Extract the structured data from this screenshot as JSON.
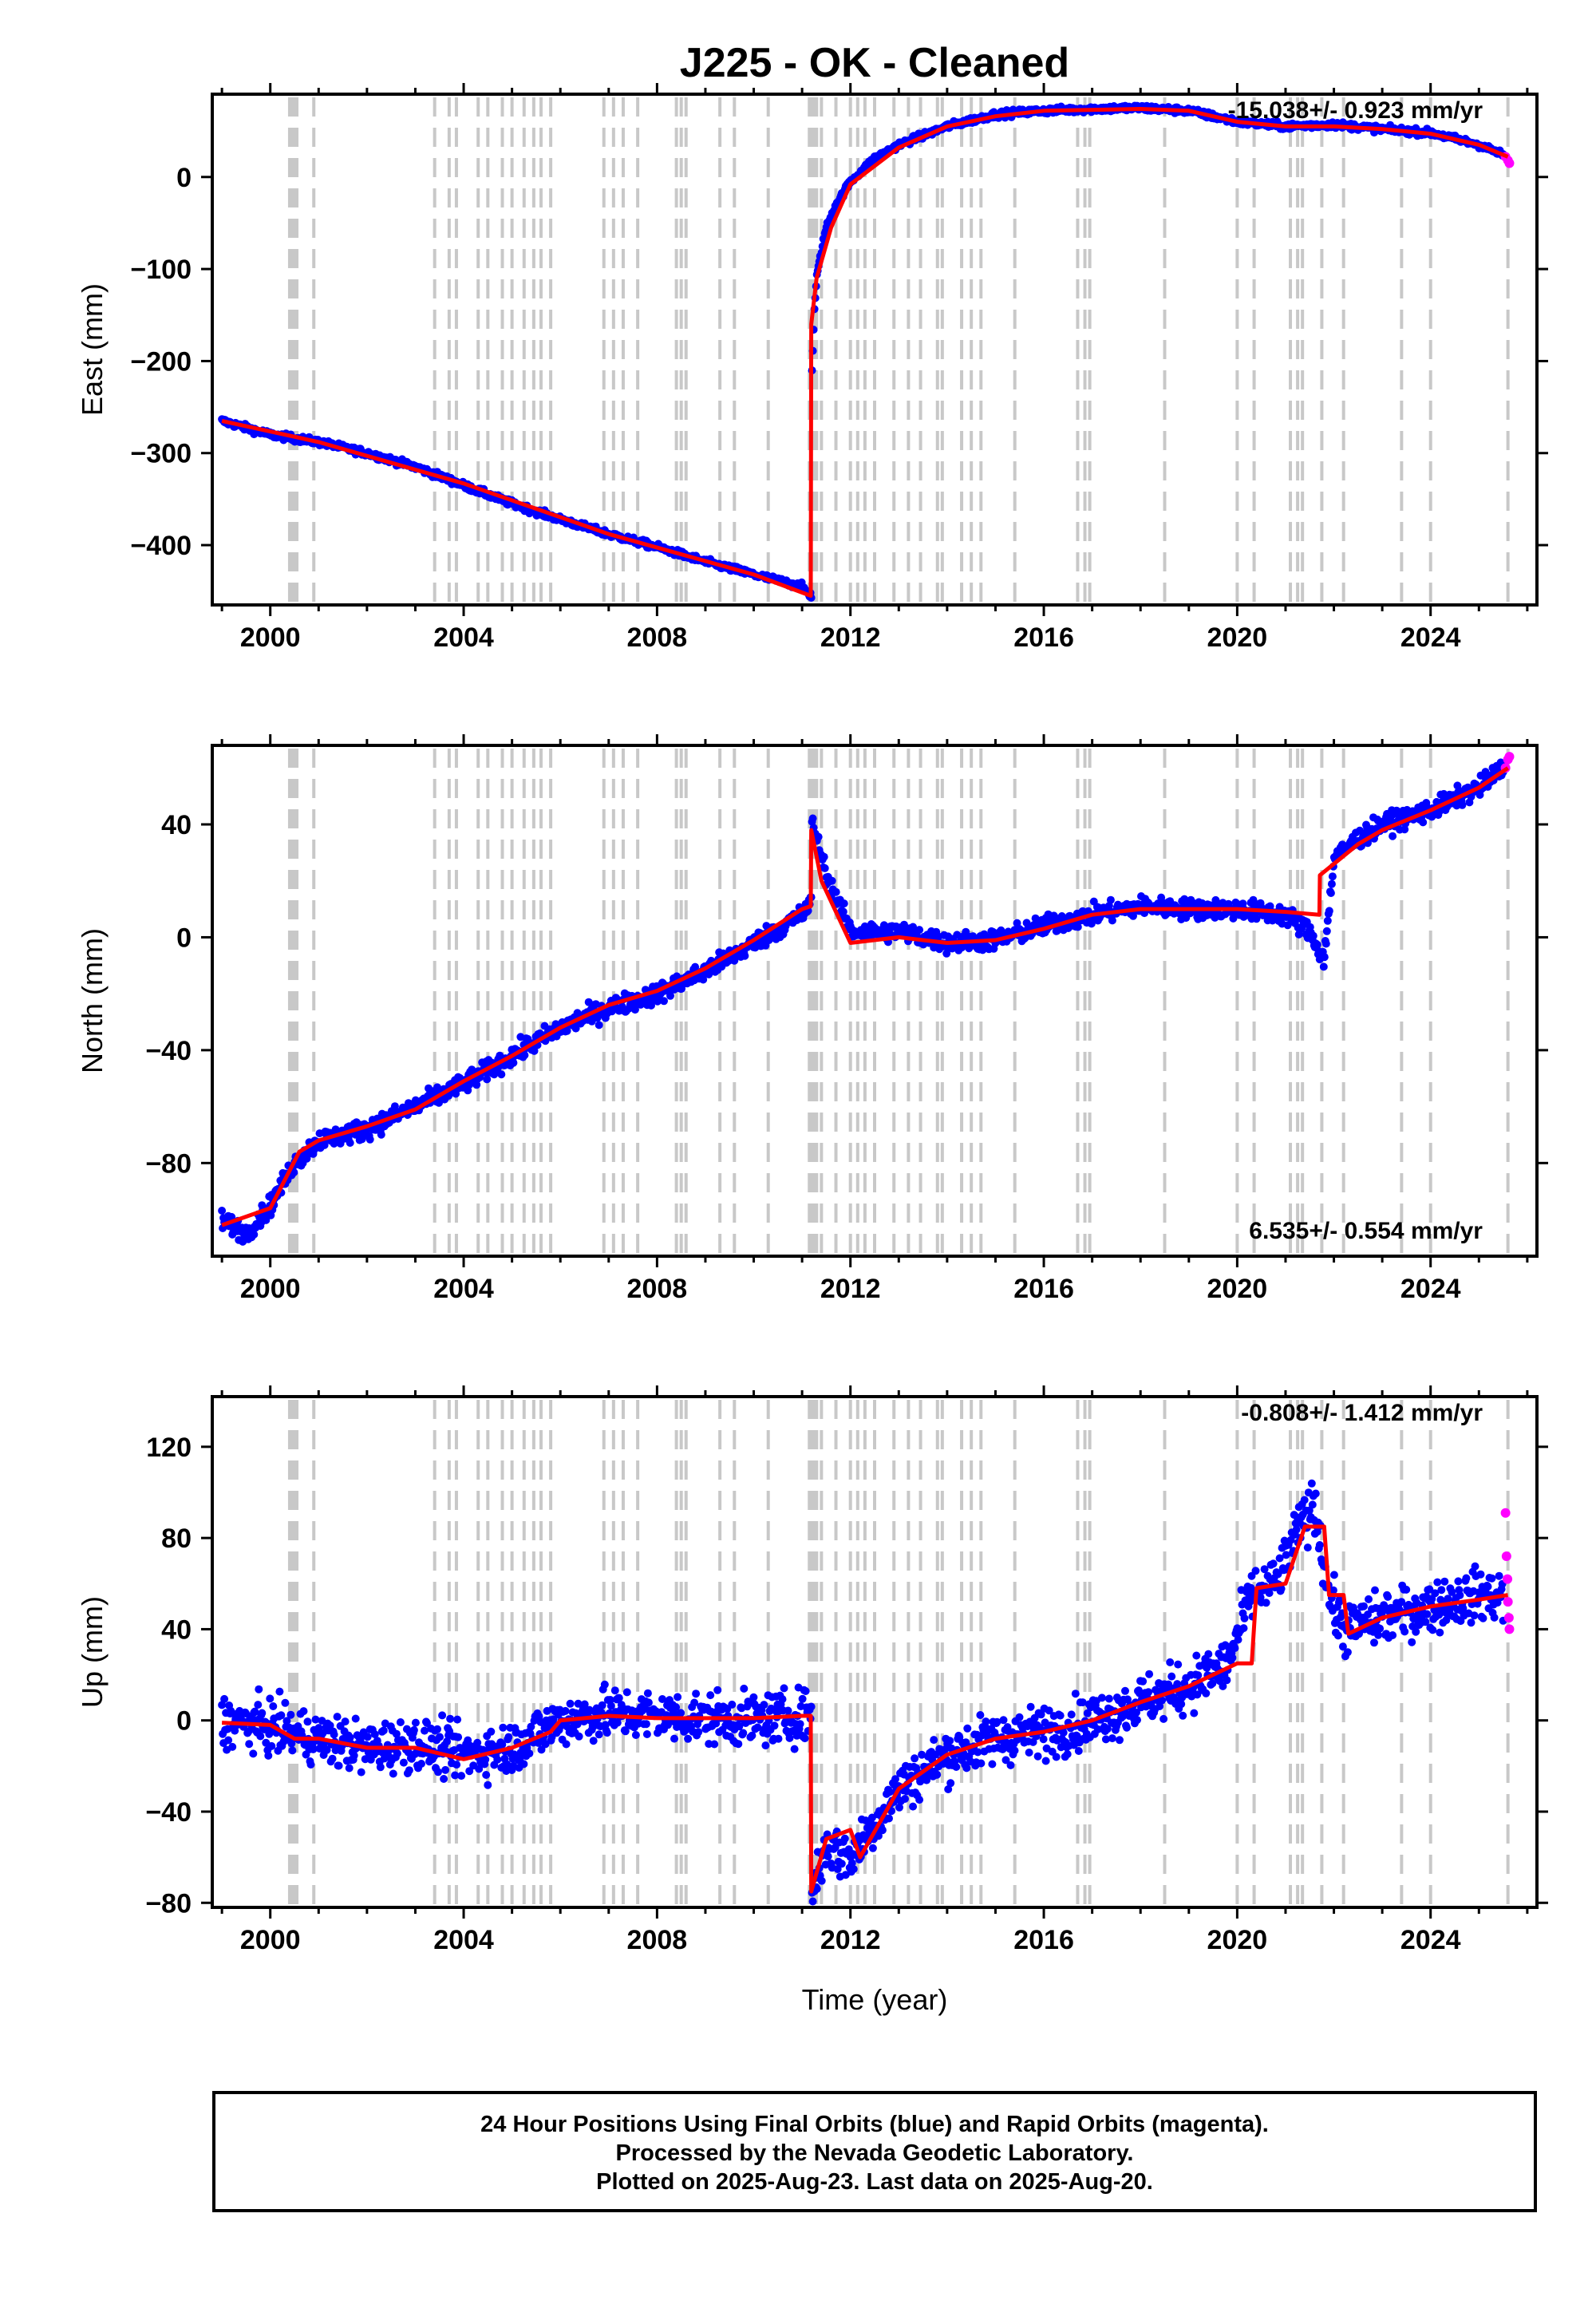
{
  "title": "J225  - OK - Cleaned",
  "xlabel": "Time (year)",
  "footer": {
    "line1": "24 Hour Positions Using Final Orbits (blue) and Rapid Orbits (magenta).",
    "line2": "Processed by the Nevada Geodetic Laboratory.",
    "line3": "Plotted on 2025-Aug-23. Last data on 2025-Aug-20."
  },
  "colors": {
    "final_orbits": "#0000ff",
    "rapid_orbits": "#ff00ff",
    "model": "#ff0000",
    "event_lines": "#c8c8c8"
  },
  "chart_data": [
    {
      "type": "scatter",
      "component": "East",
      "ylabel": "East (mm)",
      "rate": "-15.038+/- 0.923 mm/yr",
      "xlim": [
        1998.8,
        2026.2
      ],
      "ylim": [
        -465,
        90
      ],
      "xticks": [
        2000,
        2004,
        2008,
        2012,
        2016,
        2020,
        2024
      ],
      "yticks": [
        -400,
        -300,
        -200,
        -100,
        0
      ],
      "series": [
        {
          "name": "Final Orbits",
          "color": "#0000ff",
          "x": [
            1999.0,
            2000.0,
            2001.0,
            2002.0,
            2003.0,
            2004.0,
            2005.0,
            2006.0,
            2007.0,
            2008.0,
            2009.0,
            2010.0,
            2011.0,
            2011.19,
            2011.2,
            2011.25,
            2011.3,
            2011.4,
            2011.5,
            2011.7,
            2012.0,
            2012.5,
            2013.0,
            2014.0,
            2015.0,
            2016.0,
            2017.0,
            2018.0,
            2019.0,
            2020.0,
            2021.0,
            2022.0,
            2023.0,
            2024.0,
            2025.0,
            2025.5
          ],
          "y": [
            -265,
            -280,
            -288,
            -300,
            -315,
            -335,
            -355,
            -372,
            -388,
            -402,
            -418,
            -432,
            -445,
            -455,
            -220,
            -150,
            -110,
            -80,
            -55,
            -30,
            -5,
            20,
            35,
            55,
            68,
            72,
            74,
            75,
            72,
            60,
            55,
            57,
            52,
            48,
            35,
            24
          ]
        },
        {
          "name": "Rapid Orbits",
          "color": "#ff00ff",
          "x": [
            2025.55,
            2025.6,
            2025.63
          ],
          "y": [
            22,
            18,
            15
          ]
        },
        {
          "name": "Model",
          "color": "#ff0000",
          "x": [
            1999.0,
            2001.0,
            2004.0,
            2007.0,
            2010.0,
            2011.18,
            2011.19,
            2011.3,
            2011.6,
            2012.0,
            2013.0,
            2014.0,
            2015.0,
            2016.0,
            2018.0,
            2019.0,
            2020.0,
            2021.0,
            2022.0,
            2023.0,
            2024.0,
            2025.0,
            2025.6
          ],
          "y": [
            -265,
            -288,
            -333,
            -388,
            -432,
            -455,
            -160,
            -110,
            -55,
            -8,
            32,
            55,
            66,
            72,
            74,
            72,
            60,
            55,
            55,
            52,
            47,
            35,
            22
          ]
        }
      ]
    },
    {
      "type": "scatter",
      "component": "North",
      "ylabel": "North (mm)",
      "rate": "6.535+/- 0.554 mm/yr",
      "xlim": [
        1998.8,
        2026.2
      ],
      "ylim": [
        -113,
        68
      ],
      "xticks": [
        2000,
        2004,
        2008,
        2012,
        2016,
        2020,
        2024
      ],
      "yticks": [
        -80,
        -40,
        0,
        40
      ],
      "series": [
        {
          "name": "Final Orbits",
          "color": "#0000ff",
          "x": [
            1999.0,
            1999.5,
            2000.0,
            2000.5,
            2001.0,
            2002.0,
            2003.0,
            2004.0,
            2005.0,
            2006.0,
            2007.0,
            2008.0,
            2009.0,
            2010.0,
            2011.0,
            2011.19,
            2011.2,
            2011.5,
            2012.0,
            2013.0,
            2014.0,
            2015.0,
            2016.0,
            2017.0,
            2018.0,
            2019.0,
            2020.0,
            2021.0,
            2021.5,
            2021.8,
            2022.0,
            2022.5,
            2023.0,
            2024.0,
            2025.0,
            2025.5
          ],
          "y": [
            -100,
            -105,
            -95,
            -80,
            -72,
            -68,
            -60,
            -52,
            -42,
            -32,
            -25,
            -20,
            -12,
            -2,
            8,
            12,
            42,
            22,
            2,
            2,
            -2,
            -1,
            4,
            8,
            11,
            10,
            10,
            8,
            2,
            -8,
            28,
            35,
            40,
            45,
            53,
            60
          ]
        },
        {
          "name": "Rapid Orbits",
          "color": "#ff00ff",
          "x": [
            2025.55,
            2025.6,
            2025.63
          ],
          "y": [
            60,
            63,
            64
          ]
        },
        {
          "name": "Model",
          "color": "#ff0000",
          "x": [
            1999.0,
            2000.0,
            2000.6,
            2001.0,
            2002.0,
            2003.0,
            2004.0,
            2005.0,
            2006.0,
            2007.0,
            2008.0,
            2009.0,
            2010.0,
            2011.0,
            2011.18,
            2011.19,
            2011.4,
            2012.0,
            2013.0,
            2014.0,
            2015.0,
            2016.0,
            2017.0,
            2018.0,
            2019.0,
            2020.0,
            2021.0,
            2021.7,
            2021.71,
            2022.0,
            2022.5,
            2023.0,
            2024.0,
            2025.0,
            2025.6
          ],
          "y": [
            -102,
            -96,
            -76,
            -72,
            -67,
            -61,
            -51,
            -42,
            -32,
            -24,
            -19,
            -11,
            -1,
            10,
            11,
            38,
            20,
            -2,
            0,
            -2,
            -1,
            3,
            8,
            10,
            10,
            10,
            9,
            8,
            22,
            26,
            33,
            38,
            45,
            53,
            60
          ]
        }
      ]
    },
    {
      "type": "scatter",
      "component": "Up",
      "ylabel": "Up (mm)",
      "rate": "-0.808+/- 1.412 mm/yr",
      "xlim": [
        1998.8,
        2026.2
      ],
      "ylim": [
        -82,
        142
      ],
      "xticks": [
        2000,
        2004,
        2008,
        2012,
        2016,
        2020,
        2024
      ],
      "yticks": [
        -80,
        -40,
        0,
        40,
        80,
        120
      ],
      "series": [
        {
          "name": "Final Orbits",
          "color": "#0000ff",
          "x": [
            1999.0,
            2000.0,
            2001.0,
            2002.0,
            2003.0,
            2004.0,
            2005.0,
            2006.0,
            2007.0,
            2008.0,
            2009.0,
            2010.0,
            2011.0,
            2011.19,
            2011.2,
            2011.5,
            2012.0,
            2013.0,
            2014.0,
            2015.0,
            2016.0,
            2017.0,
            2018.0,
            2019.0,
            2019.8,
            2020.3,
            2020.8,
            2021.3,
            2021.6,
            2021.9,
            2022.2,
            2023.0,
            2024.0,
            2025.0,
            2025.5
          ],
          "y": [
            0,
            -3,
            -8,
            -12,
            -10,
            -15,
            -12,
            0,
            3,
            2,
            1,
            0,
            2,
            3,
            -75,
            -55,
            -60,
            -30,
            -15,
            -8,
            -5,
            0,
            8,
            15,
            25,
            55,
            60,
            85,
            95,
            55,
            40,
            45,
            50,
            55,
            55
          ]
        },
        {
          "name": "Rapid Orbits",
          "color": "#ff00ff",
          "x": [
            2025.55,
            2025.57,
            2025.59,
            2025.6,
            2025.62,
            2025.63
          ],
          "y": [
            91,
            72,
            62,
            52,
            45,
            40
          ]
        },
        {
          "name": "Model",
          "color": "#ff0000",
          "x": [
            1999.0,
            2000.0,
            2000.5,
            2001.0,
            2002.0,
            2003.0,
            2004.0,
            2005.0,
            2005.8,
            2006.0,
            2007.0,
            2008.0,
            2009.0,
            2010.0,
            2011.0,
            2011.18,
            2011.19,
            2011.5,
            2012.0,
            2012.2,
            2013.0,
            2014.0,
            2015.0,
            2016.0,
            2017.0,
            2018.0,
            2019.0,
            2020.0,
            2020.3,
            2020.4,
            2021.0,
            2021.4,
            2021.8,
            2021.9,
            2022.2,
            2022.3,
            2023.0,
            2024.0,
            2025.0,
            2025.6
          ],
          "y": [
            -1,
            -2,
            -8,
            -8,
            -12,
            -12,
            -17,
            -12,
            -5,
            0,
            2,
            1,
            1,
            1,
            2,
            2,
            -75,
            -52,
            -48,
            -60,
            -30,
            -15,
            -8,
            -5,
            0,
            8,
            15,
            25,
            25,
            58,
            60,
            85,
            85,
            55,
            55,
            38,
            45,
            50,
            53,
            55
          ]
        }
      ]
    }
  ],
  "event_lines": [
    2000.4,
    2000.45,
    2000.5,
    2000.55,
    2000.9,
    2003.4,
    2003.7,
    2003.85,
    2004.3,
    2004.5,
    2004.8,
    2005.0,
    2005.25,
    2005.45,
    2005.6,
    2005.8,
    2006.9,
    2007.1,
    2007.3,
    2007.6,
    2008.4,
    2008.5,
    2008.6,
    2009.3,
    2009.6,
    2010.3,
    2011.15,
    2011.2,
    2011.25,
    2011.3,
    2011.4,
    2011.7,
    2012.0,
    2012.15,
    2012.3,
    2012.5,
    2012.9,
    2013.2,
    2013.45,
    2013.8,
    2013.9,
    2014.3,
    2014.5,
    2014.7,
    2015.4,
    2016.7,
    2016.85,
    2016.95,
    2018.5,
    2020.0,
    2020.35,
    2021.1,
    2021.25,
    2021.35,
    2021.75,
    2022.2,
    2023.4,
    2024.0,
    2025.6
  ]
}
